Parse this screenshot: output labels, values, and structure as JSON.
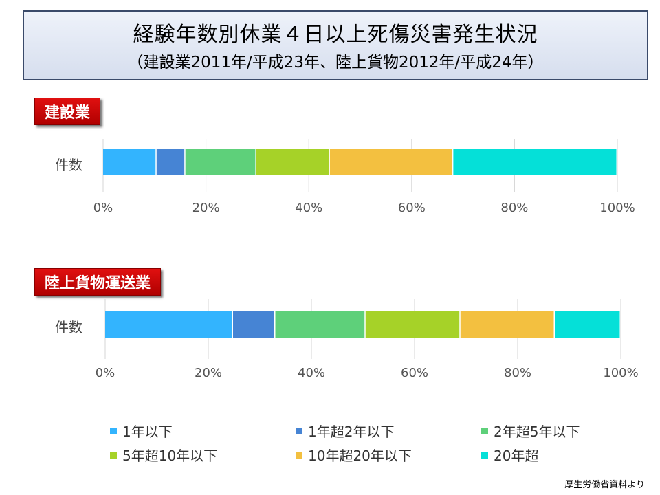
{
  "title": "経験年数別休業４日以上死傷災害発生状況",
  "subtitle": "（建設業2011年/平成23年、陸上貨物2012年/平成24年）",
  "source": "厚生労働省資料より",
  "chart_data": [
    {
      "type": "bar",
      "orientation": "horizontal-stacked-100",
      "section_label": "建設業",
      "categories": [
        "件数"
      ],
      "series": [
        {
          "name": "1年以下",
          "values": [
            10.4
          ]
        },
        {
          "name": "1年超2年以下",
          "values": [
            5.6
          ]
        },
        {
          "name": "2年超5年以下",
          "values": [
            13.8
          ]
        },
        {
          "name": "5年超10年以下",
          "values": [
            14.3
          ]
        },
        {
          "name": "10年超20年以下",
          "values": [
            24.0
          ]
        },
        {
          "name": "20年超",
          "values": [
            31.9
          ]
        }
      ],
      "xticks": [
        "0%",
        "20%",
        "40%",
        "60%",
        "80%",
        "100%"
      ],
      "xlim": [
        0,
        100
      ]
    },
    {
      "type": "bar",
      "orientation": "horizontal-stacked-100",
      "section_label": "陸上貨物運送業",
      "categories": [
        "件数"
      ],
      "series": [
        {
          "name": "1年以下",
          "values": [
            24.8
          ]
        },
        {
          "name": "1年超2年以下",
          "values": [
            8.2
          ]
        },
        {
          "name": "2年超5年以下",
          "values": [
            17.5
          ]
        },
        {
          "name": "5年超10年以下",
          "values": [
            18.4
          ]
        },
        {
          "name": "10年超20年以下",
          "values": [
            18.3
          ]
        },
        {
          "name": "20年超",
          "values": [
            12.8
          ]
        }
      ],
      "xticks": [
        "0%",
        "20%",
        "40%",
        "60%",
        "80%",
        "100%"
      ],
      "xlim": [
        0,
        100
      ]
    }
  ],
  "legend": [
    "1年以下",
    "1年超2年以下",
    "2年超5年以下",
    "5年超10年以下",
    "10年超20年以下",
    "20年超"
  ],
  "colors": [
    "#33b4fe",
    "#4684d4",
    "#5ed07a",
    "#a6d228",
    "#f3c040",
    "#05e0d8"
  ]
}
